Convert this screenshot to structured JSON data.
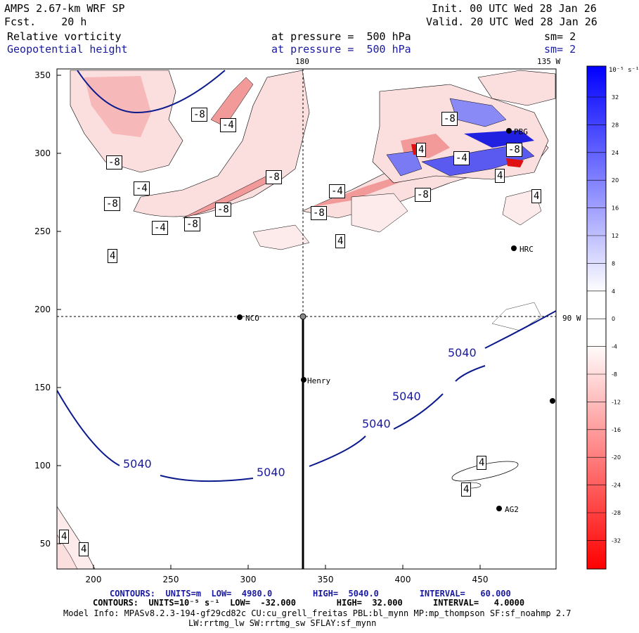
{
  "header": {
    "model": "AMPS 2.67-km WRF SP",
    "fcst": "Fcst.    20 h",
    "init": "Init. 00 UTC Wed 28 Jan 26",
    "valid": "Valid. 20 UTC Wed 28 Jan 26",
    "field1": "Relative vorticity",
    "field1_level": "at pressure =  500 hPa",
    "field1_sm": "sm= 2",
    "field2": "Geopotential height",
    "field2_level": "at pressure =  500 hPa",
    "field2_sm": "sm= 2"
  },
  "map": {
    "lon_top_180": "180",
    "lon_top_135w": "135 W",
    "lon_right_90w": "90 W",
    "x_ticks": [
      "200",
      "250",
      "300",
      "350",
      "400",
      "450"
    ],
    "y_ticks": [
      "50",
      "100",
      "150",
      "200",
      "250",
      "300",
      "350"
    ],
    "stations": [
      "NCO",
      "Henry",
      "PBG",
      "HRC",
      "AG2"
    ],
    "height_contour_label": "5040",
    "vorticity_labels": [
      "-8",
      "-4",
      "4",
      "-8",
      "-4",
      "-8",
      "-8",
      "-4",
      "-8",
      "-4",
      "-8",
      "-8",
      "4",
      "-8",
      "-4",
      "-8",
      "4",
      "-8",
      "4",
      "4",
      "4",
      "4",
      "4",
      "4"
    ],
    "colors": {
      "height": "#0b1a8c",
      "positive": "#1010e0",
      "negative": "#e01010"
    }
  },
  "colorbar": {
    "unit": "10⁻⁵ s⁻¹",
    "ticks": [
      "32",
      "28",
      "24",
      "20",
      "16",
      "12",
      "8",
      "4",
      "0",
      "-4",
      "-8",
      "-12",
      "-16",
      "-20",
      "-24",
      "-28",
      "-32"
    ]
  },
  "footer": {
    "line1_label": "CONTOURS:  UNITS=m  LOW=  4980.0        HIGH=  5040.0        INTERVAL=   60.000",
    "line2_label": "CONTOURS:  UNITS=10⁻⁵ s⁻¹  LOW=  -32.000        HIGH=  32.000      INTERVAL=   4.0000",
    "line3": "Model Info: MPASv8.2.3-194-gf29cd82c CU:cu_grell_freitas PBL:bl_mynn MP:mp_thompson SF:sf_noahmp 2.7",
    "line4": "LW:rrtmg_lw SW:rrtmg_sw SFLAY:sf_mynn"
  }
}
